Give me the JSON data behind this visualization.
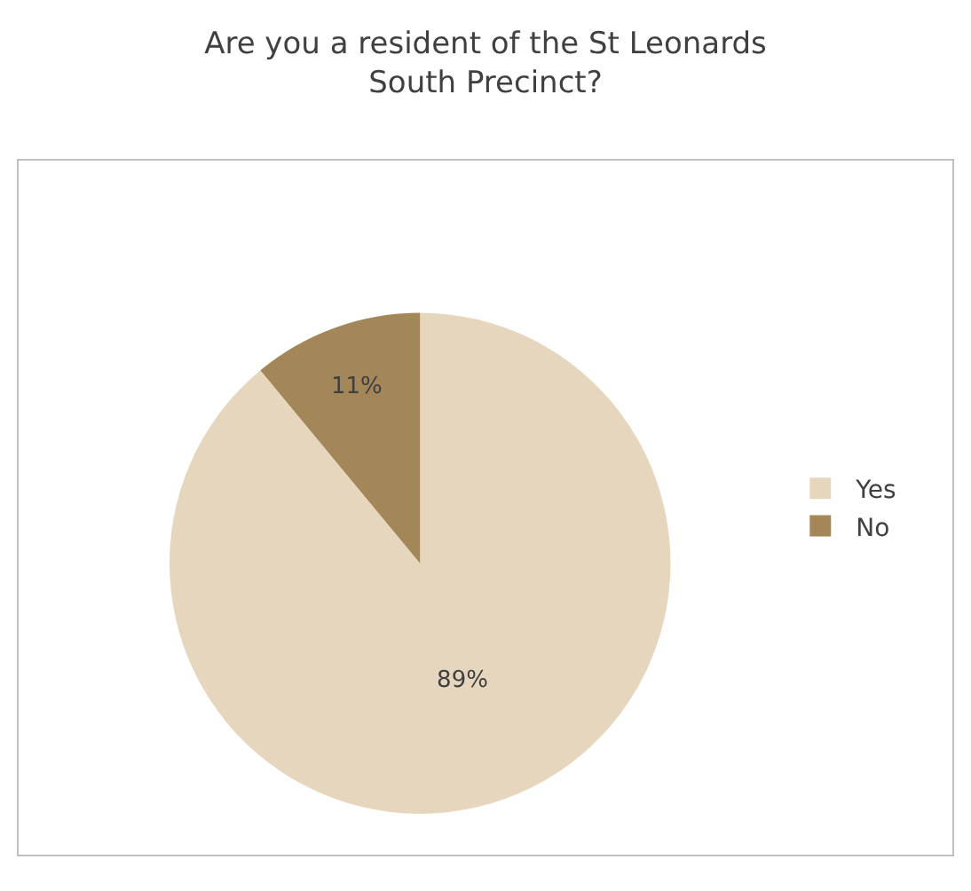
{
  "chart_data": {
    "type": "pie",
    "title": "Are you a resident of the St Leonards South Precinct?",
    "categories": [
      "Yes",
      "No"
    ],
    "values": [
      89,
      11
    ],
    "colors": [
      "#e6d6bd",
      "#a48759"
    ],
    "value_labels": [
      "89%",
      "11%"
    ],
    "legend": "right"
  }
}
